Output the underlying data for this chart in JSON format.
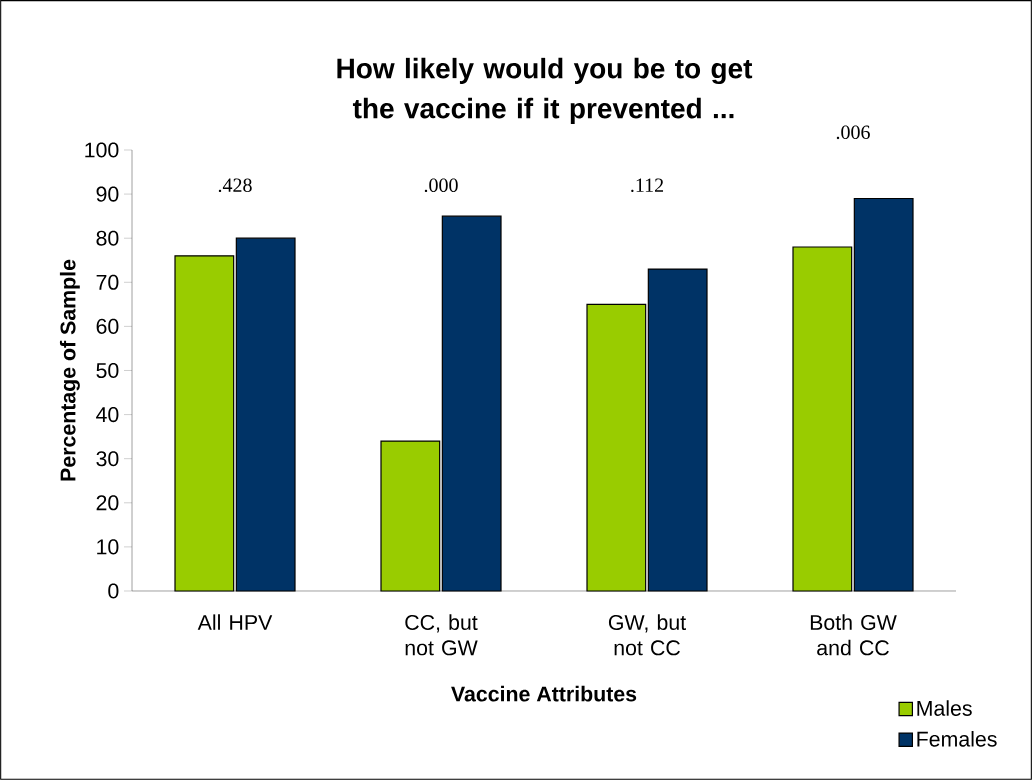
{
  "chart_data": {
    "type": "bar",
    "title": "How likely would you be to get the vaccine if it prevented ...",
    "xlabel": "Vaccine Attributes",
    "ylabel": "Percentage of Sample",
    "categories": [
      "All HPV",
      "CC, but not GW",
      "GW, but not CC",
      "Both GW and CC"
    ],
    "series": [
      {
        "name": "Males",
        "color": "#99cc00",
        "values": [
          76,
          34,
          65,
          78
        ]
      },
      {
        "name": "Females",
        "color": "#003366",
        "values": [
          80,
          85,
          73,
          89
        ]
      }
    ],
    "ylim": [
      0,
      100
    ],
    "yticks": [
      0,
      10,
      20,
      30,
      40,
      50,
      60,
      70,
      80,
      90,
      100
    ],
    "annotations": [
      ".428",
      ".000",
      ".112",
      ".006"
    ],
    "grid": false,
    "legend": "bottom right"
  }
}
